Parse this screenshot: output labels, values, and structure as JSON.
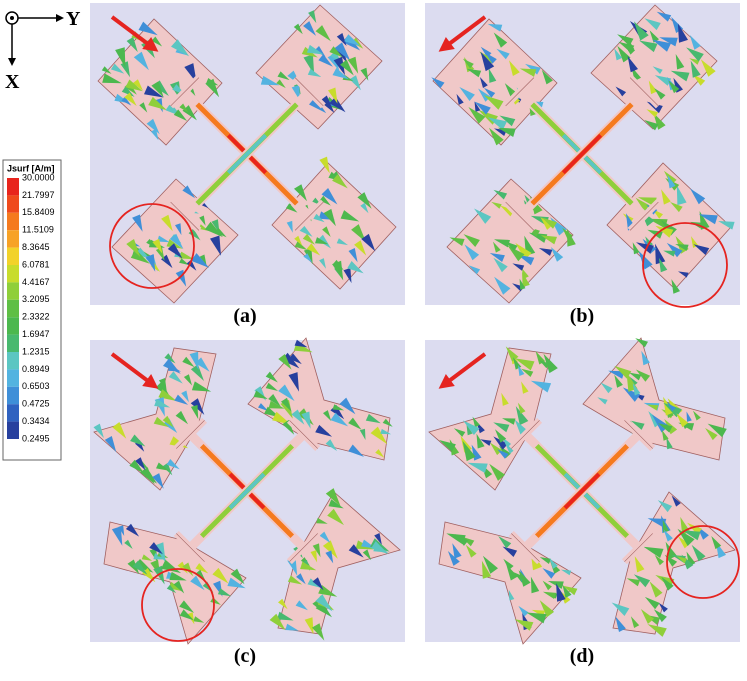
{
  "axes": {
    "y_label": "Y",
    "x_label": "X"
  },
  "legend": {
    "title": "Jsurf [A/m]",
    "ticks": [
      "30.0000",
      "21.7997",
      "15.8409",
      "11.5109",
      "8.3645",
      "6.0781",
      "4.4167",
      "3.2095",
      "2.3322",
      "1.6947",
      "1.2315",
      "0.8949",
      "0.6503",
      "0.4725",
      "0.3434",
      "0.2495"
    ]
  },
  "panels": [
    {
      "label": "(a)"
    },
    {
      "label": "(b)"
    },
    {
      "label": "(c)"
    },
    {
      "label": "(d)"
    }
  ]
}
